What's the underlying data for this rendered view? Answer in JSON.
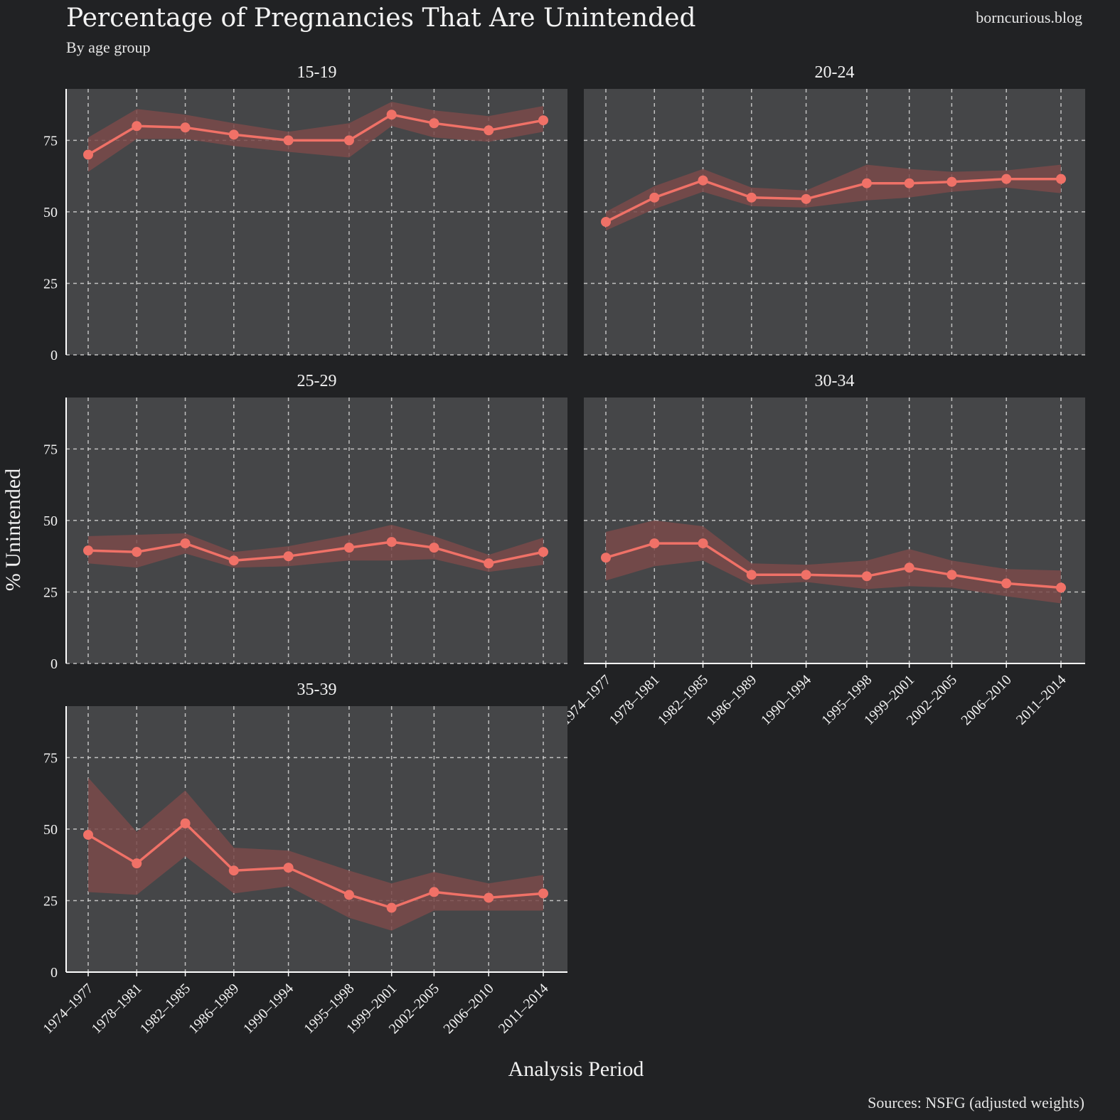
{
  "header": {
    "title": "Percentage of Pregnancies That Are Unintended",
    "subtitle": "By age group",
    "site": "borncurious.blog",
    "source": "Sources: NSFG (adjusted weights)"
  },
  "colors": {
    "background": "#212224",
    "panel": "#454648",
    "line": "#f07167",
    "band": "#7a4a4a",
    "grid": "#cfcfcf",
    "text": "#f2f2f2"
  },
  "chart_data": {
    "type": "line",
    "xlabel": "Analysis Period",
    "ylabel": "% Unintended",
    "ylim": [
      0,
      93
    ],
    "yticks": [
      0,
      25,
      50,
      75
    ],
    "grid": true,
    "categories": [
      "1974–1977",
      "1978–1981",
      "1982–1985",
      "1986–1989",
      "1990–1994",
      "1995–1998",
      "1999–2001",
      "2002–2005",
      "2006–2010",
      "2011–2014"
    ],
    "x_positions": [
      1974,
      1978,
      1982,
      1986,
      1990.5,
      1995.5,
      1999,
      2002.5,
      2007,
      2011.5
    ],
    "facets": [
      {
        "label": "15-19",
        "values": [
          70,
          80,
          79.5,
          77,
          75,
          75,
          84,
          81,
          78.5,
          82
        ],
        "lower": [
          64,
          75.5,
          75.5,
          73,
          71,
          69,
          80,
          76,
          74.5,
          78
        ],
        "upper": [
          76,
          86,
          84,
          81,
          78,
          81,
          88.5,
          85.5,
          83.5,
          87
        ]
      },
      {
        "label": "20-24",
        "values": [
          46.5,
          55,
          61,
          55,
          54.5,
          60,
          60,
          60.5,
          61.5,
          61.5
        ],
        "lower": [
          43.5,
          51,
          57,
          52,
          51.5,
          54,
          55,
          57,
          58.5,
          56.5
        ],
        "upper": [
          50,
          59,
          65,
          58.5,
          57.5,
          66.5,
          65,
          64,
          64.5,
          66.5
        ]
      },
      {
        "label": "25-29",
        "values": [
          39.5,
          39,
          42,
          36,
          37.5,
          40.5,
          42.5,
          40.5,
          35,
          39
        ],
        "lower": [
          35,
          33.5,
          38.5,
          33.5,
          34,
          36,
          36,
          36.5,
          32,
          34.5
        ],
        "upper": [
          44.5,
          45,
          45.5,
          39,
          41,
          45,
          48.5,
          44.5,
          38,
          44
        ]
      },
      {
        "label": "30-34",
        "values": [
          37,
          42,
          42,
          31,
          31,
          30.5,
          33.5,
          31,
          28,
          26.5
        ],
        "lower": [
          29,
          34,
          36,
          27.5,
          28.5,
          26,
          27,
          26.5,
          23.5,
          21
        ],
        "upper": [
          46,
          50,
          48,
          35,
          34.5,
          36,
          40,
          36,
          33,
          32.5
        ]
      },
      {
        "label": "35-39",
        "values": [
          48,
          38,
          52,
          35.5,
          36.5,
          27,
          22.5,
          28,
          26,
          27.5
        ],
        "lower": [
          28,
          27,
          40.5,
          27.5,
          30,
          19,
          14.5,
          21.5,
          21.5,
          21.5
        ],
        "upper": [
          68,
          49,
          63.5,
          43.5,
          42.5,
          35.5,
          31,
          35,
          31,
          34
        ]
      }
    ]
  }
}
